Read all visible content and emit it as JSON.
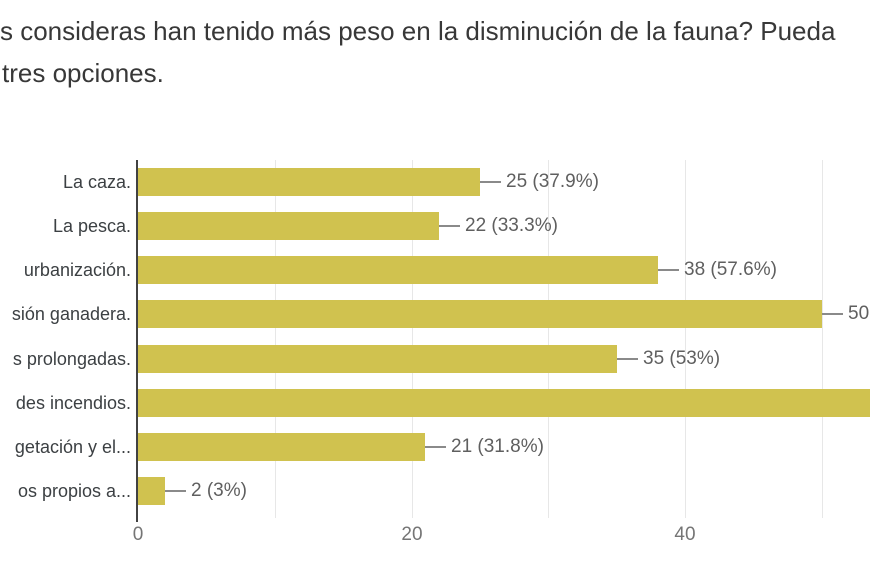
{
  "title": {
    "line1": "s consideras han tenido más peso en la disminución de la fauna? Pueda",
    "line2": "tres opciones."
  },
  "chart_data": {
    "type": "bar",
    "orientation": "horizontal",
    "categories": [
      "La caza.",
      "La pesca.",
      "urbanización.",
      "sión ganadera.",
      "s prolongadas.",
      "des incendios.",
      "getación y el...",
      "os propios a..."
    ],
    "values": [
      25,
      22,
      38,
      50,
      35,
      null,
      21,
      2
    ],
    "percents": [
      37.9,
      33.3,
      57.6,
      null,
      53,
      null,
      31.8,
      3
    ],
    "rows": [
      {
        "label": "La caza.",
        "value": 25,
        "annotation": "25 (37.9%)",
        "clipped": false
      },
      {
        "label": "La pesca.",
        "value": 22,
        "annotation": "22 (33.3%)",
        "clipped": false
      },
      {
        "label": "urbanización.",
        "value": 38,
        "annotation": "38 (57.6%)",
        "clipped": false
      },
      {
        "label": "sión ganadera.",
        "value": 50,
        "annotation": "50",
        "clipped": false
      },
      {
        "label": "s prolongadas.",
        "value": 35,
        "annotation": "35 (53%)",
        "clipped": false
      },
      {
        "label": "des incendios.",
        "value": null,
        "annotation": "",
        "clipped": true
      },
      {
        "label": "getación y el...",
        "value": 21,
        "annotation": "21 (31.8%)",
        "clipped": false
      },
      {
        "label": "os propios a...",
        "value": 2,
        "annotation": "2 (3%)",
        "clipped": false
      }
    ],
    "x_ticks": [
      0,
      20,
      40
    ],
    "xlim": [
      0,
      53.5
    ],
    "grid": {
      "vertical_minor_every": 10,
      "visible": true
    },
    "legend": "none",
    "xlabel": "",
    "ylabel": "",
    "notes": "Image is a crop: left side of several category labels, the right end of the 'des incendios.' bar with its value label, and the percentage after '50' are cut off at the image edges."
  },
  "colors": {
    "bar": "#d0c24f",
    "axis": "#424242",
    "gridline": "#e7e7e7",
    "value_label": "#5f5f5f",
    "category_label": "#3c4043",
    "tick_label": "#757575",
    "title": "#383838",
    "background": "#ffffff"
  }
}
